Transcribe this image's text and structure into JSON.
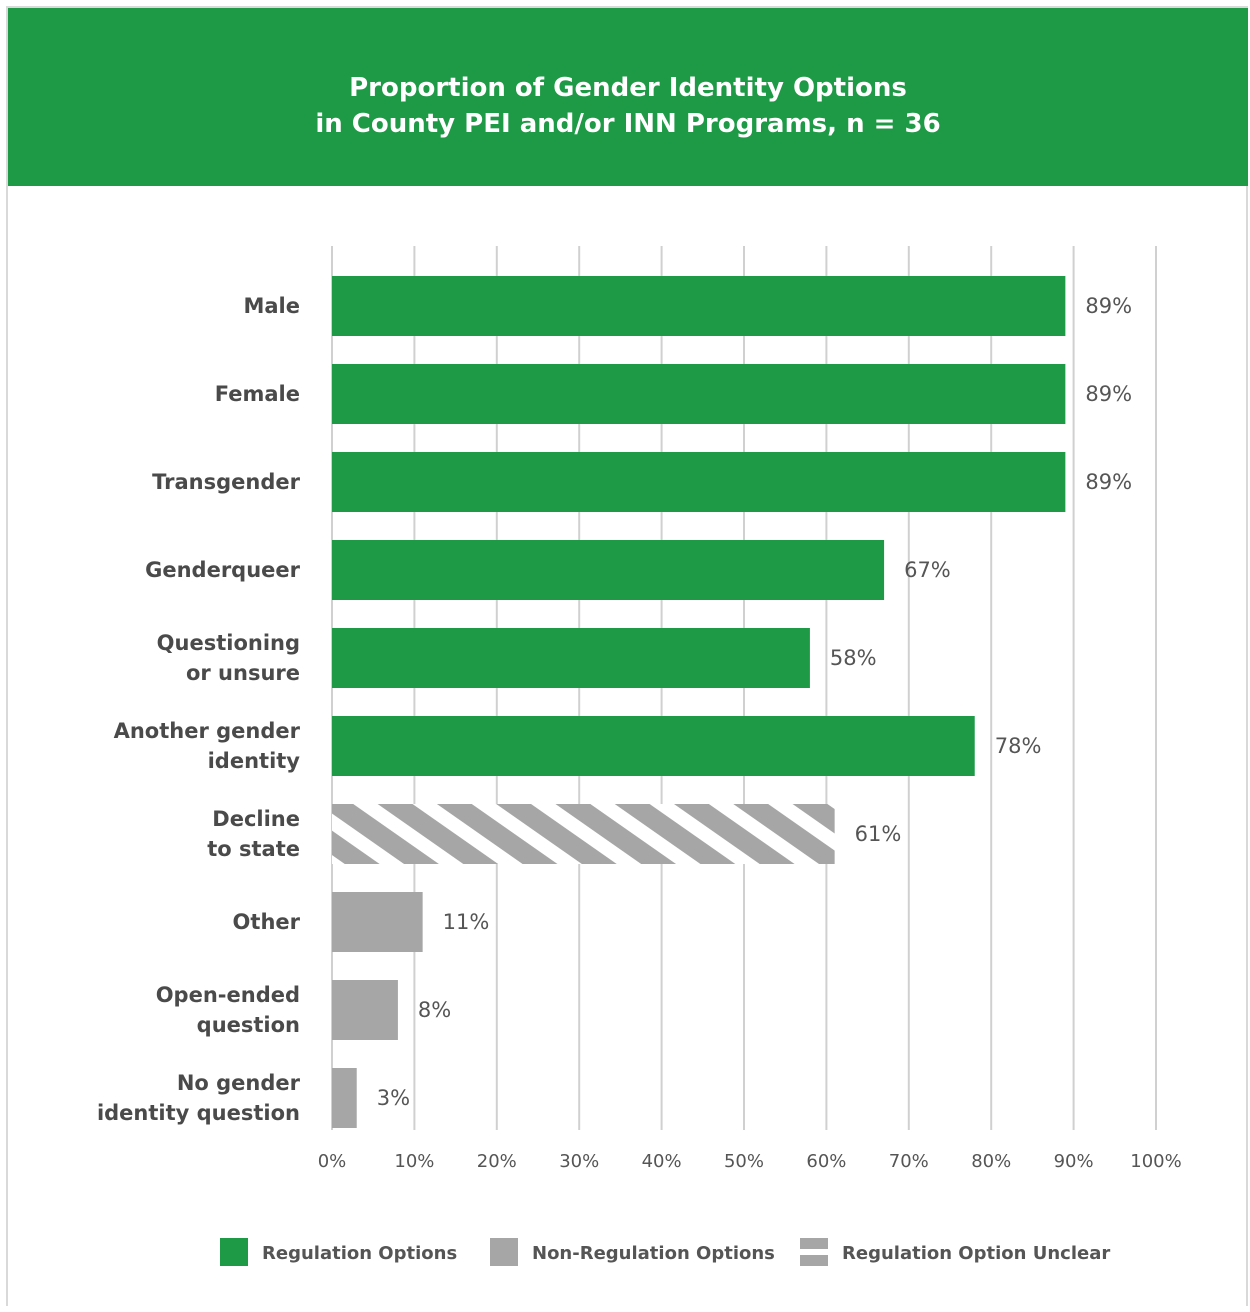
{
  "chart_data": {
    "type": "bar",
    "orientation": "horizontal",
    "title": [
      "Proportion of Gender Identity Options",
      "in County PEI and/or INN Programs, n = 36"
    ],
    "xlim": [
      0,
      100
    ],
    "grid": true,
    "legend_position": "bottom",
    "categories": [
      [
        "Male"
      ],
      [
        "Female"
      ],
      [
        "Transgender"
      ],
      [
        "Genderqueer"
      ],
      [
        "Questioning",
        "or unsure"
      ],
      [
        "Another gender",
        "identity"
      ],
      [
        "Decline",
        "to state"
      ],
      [
        "Other"
      ],
      [
        "Open-ended",
        "question"
      ],
      [
        "No gender",
        "identity question"
      ]
    ],
    "values": [
      89,
      89,
      89,
      67,
      58,
      78,
      61,
      11,
      8,
      3
    ],
    "value_labels": [
      "89%",
      "89%",
      "89%",
      "67%",
      "58%",
      "78%",
      "61%",
      "11%",
      "8%",
      "3%"
    ],
    "bar_types": [
      "regulation",
      "regulation",
      "regulation",
      "regulation",
      "regulation",
      "regulation",
      "unclear",
      "non",
      "non",
      "non"
    ],
    "ticks": [
      "0%",
      "10%",
      "20%",
      "30%",
      "40%",
      "50%",
      "60%",
      "70%",
      "80%",
      "90%",
      "100%"
    ],
    "legend": [
      {
        "key": "regulation",
        "label": "Regulation Options",
        "color": "#1e9a46"
      },
      {
        "key": "non",
        "label": "Non-Regulation Options",
        "color": "#a6a6a6"
      },
      {
        "key": "unclear",
        "label": "Regulation Option Unclear",
        "color": "#a6a6a6",
        "pattern": "hatched"
      }
    ],
    "colors": {
      "regulation": "#1e9a46",
      "non": "#a6a6a6",
      "unclear": "#a6a6a6"
    }
  }
}
